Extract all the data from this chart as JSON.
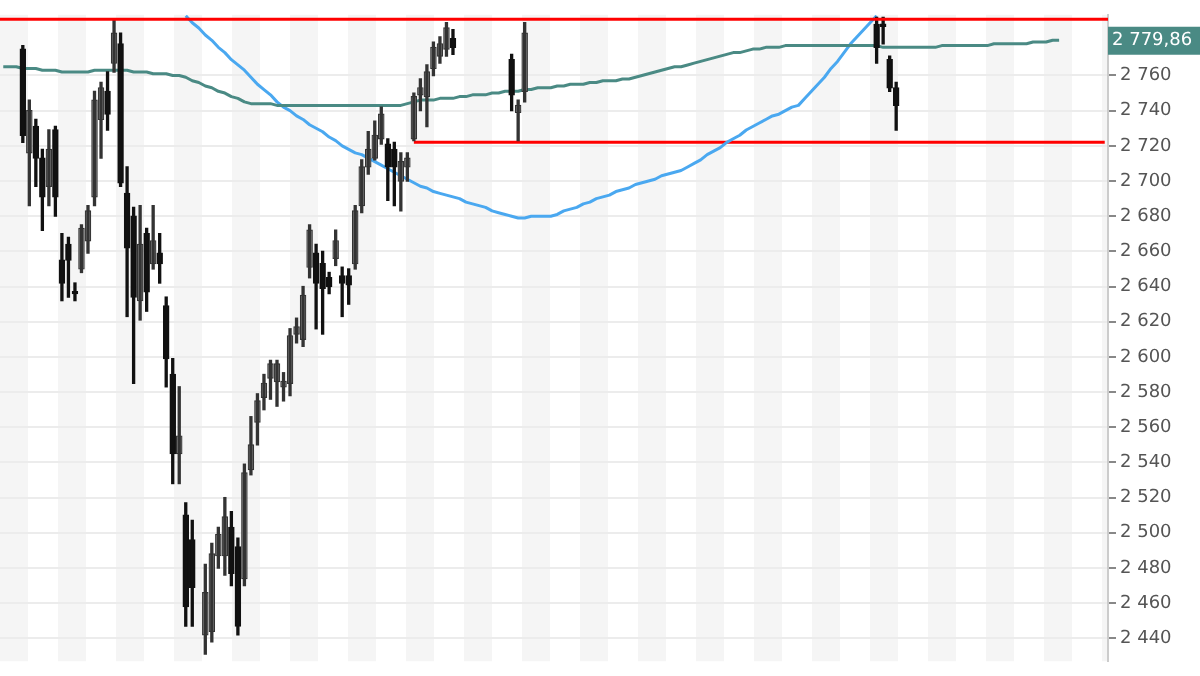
{
  "chart_data": {
    "type": "candlestick",
    "categories": [
      null,
      null,
      null,
      null,
      null,
      null,
      null,
      null,
      null,
      null,
      null,
      null,
      null,
      null,
      null,
      null,
      null,
      null,
      null,
      null,
      null,
      null,
      null,
      null,
      null,
      null,
      null,
      null,
      null,
      null,
      null,
      null,
      null,
      null,
      null,
      null,
      null,
      null,
      null,
      null,
      null,
      null,
      null,
      null,
      null,
      null,
      null,
      null,
      null,
      null,
      null,
      null,
      null,
      null,
      null,
      null,
      null,
      null,
      null,
      null,
      null,
      null,
      null,
      null,
      null,
      null,
      null,
      null,
      null,
      null,
      null,
      null,
      null,
      null,
      null,
      null,
      null,
      null,
      null,
      null,
      null,
      null,
      null,
      null,
      null,
      null,
      null,
      null,
      null,
      null,
      null,
      null,
      null,
      null,
      null,
      null,
      null,
      null,
      null,
      null,
      null,
      null,
      null,
      null,
      null,
      null,
      null,
      null,
      null,
      null,
      null,
      null,
      null,
      null,
      null,
      null,
      null,
      null,
      null,
      null,
      null,
      null,
      null,
      null,
      null,
      null,
      null,
      null,
      null,
      null,
      null,
      null,
      null,
      null,
      null,
      null,
      null,
      null,
      null,
      null,
      null,
      null,
      null,
      null,
      null,
      null,
      null,
      null,
      null,
      null,
      null,
      null,
      null,
      null,
      null,
      null,
      null,
      null,
      null,
      null,
      null,
      null,
      null,
      null,
      null,
      null,
      null,
      null,
      null,
      null
    ],
    "series": [
      {
        "ohlc": [
          null,
          null,
          null,
          [
            2775,
            2777,
            2722,
            2726
          ],
          [
            2716,
            2746,
            2686,
            2740
          ],
          [
            2731,
            2735,
            2697,
            2713
          ],
          [
            2713,
            2718,
            2672,
            2691
          ],
          [
            2697,
            2729,
            2686,
            2718
          ],
          [
            2729,
            2731,
            2680,
            2691
          ],
          [
            2655,
            2670,
            2632,
            2642
          ],
          [
            2664,
            2668,
            2634,
            2655
          ],
          [
            2637,
            2642,
            2632,
            2636
          ],
          [
            2650,
            2675,
            2648,
            2673
          ],
          [
            2666,
            2686,
            2659,
            2683
          ],
          [
            2691,
            2751,
            2686,
            2746
          ],
          [
            2735,
            2756,
            2713,
            2753
          ],
          [
            2751,
            2762,
            2729,
            2738
          ],
          [
            2767,
            2792,
            2762,
            2784
          ],
          [
            2778,
            2784,
            2697,
            2699
          ],
          [
            2693,
            2708,
            2623,
            2662
          ],
          [
            2680,
            2685,
            2585,
            2634
          ],
          [
            2632,
            2686,
            2621,
            2664
          ],
          [
            2670,
            2673,
            2626,
            2637
          ],
          [
            2653,
            2686,
            2650,
            2666
          ],
          [
            2659,
            2670,
            2642,
            2653
          ],
          [
            2629,
            2634,
            2583,
            2599
          ],
          [
            2590,
            2599,
            2528,
            2545
          ],
          [
            2545,
            2583,
            2528,
            2555
          ],
          [
            2510,
            2517,
            2447,
            2458
          ],
          [
            2496,
            2507,
            2447,
            2469
          ],
          null,
          [
            2442,
            2482,
            2431,
            2466
          ],
          [
            2444,
            2494,
            2438,
            2488
          ],
          [
            2487,
            2503,
            2480,
            2499
          ],
          [
            2487,
            2520,
            2476,
            2509
          ],
          [
            2503,
            2512,
            2470,
            2477
          ],
          [
            2492,
            2497,
            2442,
            2447
          ],
          [
            2474,
            2539,
            2470,
            2534
          ],
          [
            2536,
            2566,
            2533,
            2550
          ],
          [
            2563,
            2579,
            2550,
            2575
          ],
          [
            2577,
            2590,
            2570,
            2585
          ],
          [
            2588,
            2598,
            2576,
            2596
          ],
          [
            2586,
            2598,
            2572,
            2596
          ],
          [
            2583,
            2591,
            2575,
            2586
          ],
          [
            2585,
            2616,
            2578,
            2612
          ],
          [
            2613,
            2622,
            2608,
            2617
          ],
          [
            2610,
            2640,
            2606,
            2635
          ],
          [
            2651,
            2675,
            2645,
            2672
          ],
          [
            2659,
            2664,
            2616,
            2642
          ],
          [
            2653,
            2660,
            2613,
            2639
          ],
          [
            2645,
            2648,
            2636,
            2640
          ],
          [
            2656,
            2672,
            2652,
            2666
          ],
          [
            2646,
            2651,
            2623,
            2642
          ],
          [
            2646,
            2650,
            2630,
            2641
          ],
          [
            2653,
            2686,
            2650,
            2683
          ],
          [
            2686,
            2712,
            2682,
            2708
          ],
          [
            2708,
            2728,
            2704,
            2718
          ],
          [
            2713,
            2734,
            2712,
            2726
          ],
          [
            2724,
            2742,
            2721,
            2738
          ],
          [
            2721,
            2724,
            2689,
            2708
          ],
          [
            2718,
            2722,
            2686,
            2708
          ],
          [
            2700,
            2716,
            2683,
            2711
          ],
          [
            2708,
            2716,
            2700,
            2713
          ],
          [
            2724,
            2750,
            2723,
            2748
          ],
          [
            2749,
            2758,
            2740,
            2753
          ],
          [
            2748,
            2766,
            2731,
            2762
          ],
          [
            2764,
            2779,
            2760,
            2776
          ],
          [
            2771,
            2782,
            2767,
            2778
          ],
          [
            2775,
            2790,
            2771,
            2787
          ],
          [
            2781,
            2786,
            2772,
            2776
          ],
          null,
          null,
          null,
          null,
          null,
          null,
          null,
          null,
          [
            2769,
            2772,
            2740,
            2749
          ],
          [
            2739,
            2746,
            2723,
            2743
          ],
          [
            2751,
            2790,
            2745,
            2784
          ],
          null,
          null,
          null,
          null,
          null,
          null,
          null,
          null,
          null,
          null,
          null,
          null,
          null,
          null,
          null,
          null,
          null,
          null,
          null,
          null,
          null,
          null,
          null,
          null,
          null,
          null,
          null,
          null,
          null,
          null,
          null,
          null,
          null,
          null,
          null,
          null,
          null,
          null,
          null,
          null,
          null,
          null,
          null,
          null,
          null,
          null,
          null,
          null,
          null,
          null,
          null,
          null,
          null,
          [
            2789,
            2793,
            2767,
            2776
          ],
          [
            2789,
            2793,
            2778,
            2788
          ],
          [
            2769,
            2771,
            2751,
            2753
          ],
          [
            2753,
            2756,
            2729,
            2743
          ],
          null,
          null,
          null,
          null,
          null,
          null,
          null,
          null,
          null,
          null,
          null,
          null,
          null,
          null,
          null,
          null,
          null,
          null,
          null,
          null,
          null,
          null,
          null,
          null,
          null,
          null,
          null,
          null,
          null,
          null,
          null,
          null
        ]
      },
      {
        "type": "line",
        "color": "#4a8a84",
        "values": [
          2765,
          2765,
          2765,
          2764,
          2764,
          2764,
          2763,
          2763,
          2763,
          2762,
          2762,
          2762,
          2762,
          2762,
          2763,
          2763,
          2763,
          2763,
          2763,
          2763,
          2762,
          2762,
          2762,
          2761,
          2761,
          2761,
          2760,
          2760,
          2759,
          2757,
          2756,
          2754,
          2753,
          2751,
          2750,
          2748,
          2747,
          2745,
          2744,
          2744,
          2744,
          2744,
          2743,
          2743,
          2743,
          2743,
          2743,
          2743,
          2743,
          2743,
          2743,
          2743,
          2743,
          2743,
          2743,
          2743,
          2743,
          2743,
          2743,
          2743,
          2743,
          2743,
          2744,
          2745,
          2746,
          2746,
          2746,
          2747,
          2747,
          2747,
          2748,
          2748,
          2749,
          2749,
          2749,
          2750,
          2750,
          2751,
          2751,
          2751,
          2752,
          2752,
          2753,
          2753,
          2753,
          2754,
          2754,
          2755,
          2755,
          2755,
          2756,
          2756,
          2757,
          2757,
          2757,
          2758,
          2758,
          2759,
          2760,
          2761,
          2762,
          2763,
          2764,
          2765,
          2765,
          2766,
          2767,
          2768,
          2769,
          2770,
          2771,
          2772,
          2773,
          2773,
          2774,
          2775,
          2775,
          2776,
          2776,
          2776,
          2777,
          2777,
          2777,
          2777,
          2777,
          2777,
          2777,
          2777,
          2777,
          2777,
          2777,
          2777,
          2777,
          2777,
          2777,
          2776,
          2776,
          2776,
          2776,
          2776,
          2776,
          2776,
          2776,
          2776,
          2777,
          2777,
          2777,
          2777,
          2777,
          2777,
          2777,
          2777,
          2778,
          2778,
          2778,
          2778,
          2778,
          2778,
          2779,
          2779,
          2779,
          2780,
          2780,
          null,
          null,
          null,
          null,
          null,
          null,
          null
        ]
      },
      {
        "type": "line",
        "color": "#4aa8f0",
        "values": [
          null,
          null,
          null,
          null,
          null,
          null,
          null,
          null,
          null,
          null,
          null,
          null,
          null,
          null,
          null,
          null,
          null,
          null,
          null,
          null,
          null,
          null,
          null,
          null,
          null,
          null,
          null,
          null,
          2794,
          2790,
          2787,
          2783,
          2780,
          2776,
          2773,
          2769,
          2766,
          2763,
          2759,
          2755,
          2752,
          2749,
          2745,
          2742,
          2740,
          2737,
          2735,
          2732,
          2730,
          2728,
          2725,
          2723,
          2720,
          2718,
          2716,
          2715,
          2713,
          2711,
          2709,
          2707,
          2705,
          2703,
          2701,
          2699,
          2697,
          2696,
          2694,
          2693,
          2692,
          2691,
          2690,
          2688,
          2687,
          2686,
          2685,
          2683,
          2682,
          2681,
          2680,
          2679,
          2679,
          2680,
          2680,
          2680,
          2680,
          2681,
          2683,
          2684,
          2685,
          2687,
          2688,
          2690,
          2691,
          2692,
          2694,
          2695,
          2696,
          2698,
          2699,
          2700,
          2701,
          2703,
          2704,
          2705,
          2706,
          2708,
          2710,
          2712,
          2715,
          2717,
          2719,
          2722,
          2724,
          2726,
          2729,
          2731,
          2733,
          2735,
          2737,
          2738,
          2740,
          2742,
          2743,
          2747,
          2751,
          2755,
          2759,
          2764,
          2768,
          2773,
          2778,
          2782,
          2786,
          2790,
          2794,
          null,
          null,
          null,
          null,
          null,
          null,
          null,
          null,
          null,
          null,
          null,
          null,
          null,
          null,
          null,
          null,
          null,
          null,
          null,
          null,
          null,
          null,
          null,
          null,
          null,
          null,
          null,
          null,
          null,
          null,
          null,
          null,
          null,
          null,
          null
        ]
      },
      {
        "type": "line",
        "color": "#ff0000",
        "values": [
          null,
          null,
          null,
          null,
          null,
          null,
          null,
          null,
          null,
          null,
          null,
          null,
          null,
          null,
          null,
          null,
          null,
          null,
          null,
          null,
          null,
          null,
          null,
          null,
          null,
          null,
          null,
          null,
          null,
          null,
          null,
          null,
          null,
          null,
          null,
          null,
          null,
          null,
          null,
          null,
          null,
          null,
          null,
          null,
          null,
          null,
          null,
          null,
          null,
          null,
          null,
          null,
          null,
          null,
          null,
          null,
          null,
          null,
          null,
          null,
          null,
          null,
          null,
          2722,
          2722,
          2722,
          2722,
          2722,
          2722,
          2722,
          2722,
          2722,
          2722,
          2722,
          2722,
          2722,
          2722,
          2722,
          2722,
          2722,
          2722,
          2722,
          2722,
          2722,
          2722,
          2722,
          2722,
          2722,
          2722,
          2722,
          2722,
          2722,
          2722,
          2722,
          2722,
          2722,
          2722,
          2722,
          2722,
          2722,
          2722,
          2722,
          2722,
          2722,
          2722,
          2722,
          2722,
          2722,
          2722,
          2722,
          2722,
          2722,
          2722,
          2722,
          2722,
          2722,
          2722,
          2722,
          2722,
          2722,
          2722,
          2722,
          2722,
          2722,
          2722,
          2722,
          2722,
          2722,
          2722,
          2722,
          2722,
          2722,
          2722,
          2722,
          2722,
          2722,
          2722,
          2722,
          2722,
          2722,
          2722,
          2722,
          2722,
          2722,
          2722,
          2722,
          2722,
          2722,
          2722,
          2722,
          2722,
          2722,
          2722,
          2722,
          2722,
          2722,
          2722,
          2722,
          2722,
          2722,
          2722,
          2722,
          2722,
          2722,
          2722,
          2722,
          2722,
          2722,
          2722,
          2722
        ]
      }
    ],
    "ref_lines": [
      {
        "axis": "y",
        "value": 2792,
        "color": "#ff0000"
      }
    ],
    "annotations": [
      "2 779,86"
    ],
    "ylim": [
      2427,
      2794.5
    ],
    "yticks": [
      {
        "value": 2440,
        "label": "2 440"
      },
      {
        "value": 2460,
        "label": "2 460"
      },
      {
        "value": 2480,
        "label": "2 480"
      },
      {
        "value": 2500,
        "label": "2 500"
      },
      {
        "value": 2520,
        "label": "2 520"
      },
      {
        "value": 2540,
        "label": "2 540"
      },
      {
        "value": 2560,
        "label": "2 560"
      },
      {
        "value": 2580,
        "label": "2 580"
      },
      {
        "value": 2600,
        "label": "2 600"
      },
      {
        "value": 2620,
        "label": "2 620"
      },
      {
        "value": 2640,
        "label": "2 640"
      },
      {
        "value": 2660,
        "label": "2 660"
      },
      {
        "value": 2680,
        "label": "2 680"
      },
      {
        "value": 2700,
        "label": "2 700"
      },
      {
        "value": 2720,
        "label": "2 720"
      },
      {
        "value": 2740,
        "label": "2 740"
      },
      {
        "value": 2760,
        "label": "2 760"
      }
    ],
    "grid": "y",
    "legend": false,
    "tick_labels": "y",
    "marker": "none"
  }
}
